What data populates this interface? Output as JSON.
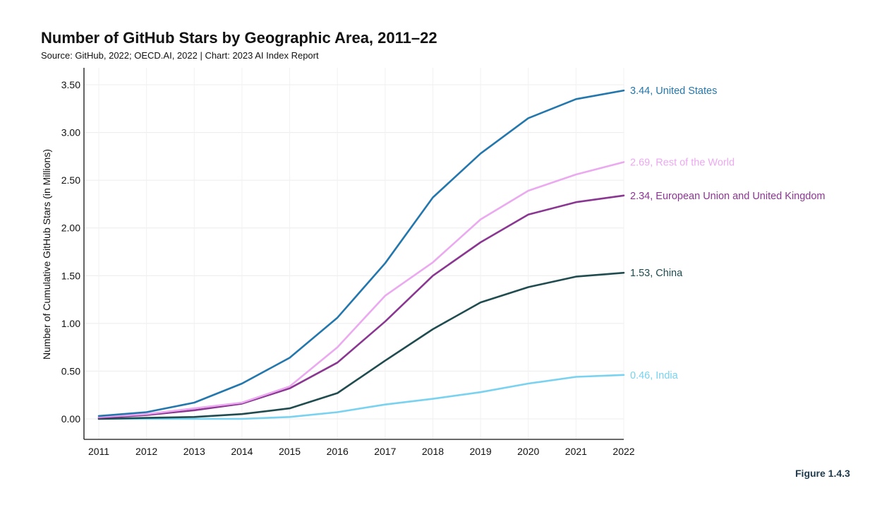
{
  "title": "Number of GitHub Stars by Geographic Area, 2011–22",
  "subtitle": "Source: GitHub, 2022; OECD.AI, 2022 | Chart: 2023 AI Index Report",
  "figure_label": "Figure 1.4.3",
  "chart_data": {
    "type": "line",
    "ylabel": "Number of Cumulative GitHub Stars (in Millions)",
    "xlabel": "",
    "x": [
      2011,
      2012,
      2013,
      2014,
      2015,
      2016,
      2017,
      2018,
      2019,
      2020,
      2021,
      2022
    ],
    "x_tick_labels": [
      "2011",
      "2012",
      "2013",
      "2014",
      "2015",
      "2016",
      "2017",
      "2018",
      "2019",
      "2020",
      "2021",
      "2022"
    ],
    "y_ticks": [
      0,
      0.5,
      1.0,
      1.5,
      2.0,
      2.5,
      3.0,
      3.5
    ],
    "y_tick_labels": [
      "0.00",
      "0.50",
      "1.00",
      "1.50",
      "2.00",
      "2.50",
      "3.00",
      "3.50"
    ],
    "ylim": [
      -0.22,
      3.65
    ],
    "grid": true,
    "series": [
      {
        "name": "United States",
        "color": "#2377ad",
        "end_label": "3.44, United States",
        "values": [
          0.03,
          0.07,
          0.17,
          0.37,
          0.64,
          1.06,
          1.63,
          2.32,
          2.78,
          3.15,
          3.35,
          3.44
        ]
      },
      {
        "name": "Rest of the World",
        "color": "#eba9f0",
        "end_label": "2.69, Rest of the World",
        "values": [
          0.02,
          0.05,
          0.11,
          0.17,
          0.34,
          0.75,
          1.29,
          1.64,
          2.09,
          2.39,
          2.56,
          2.69
        ]
      },
      {
        "name": "European Union and United Kingdom",
        "color": "#8a3791",
        "end_label": "2.34, European Union and United Kingdom",
        "values": [
          0.01,
          0.04,
          0.09,
          0.16,
          0.32,
          0.59,
          1.02,
          1.5,
          1.85,
          2.14,
          2.27,
          2.34
        ]
      },
      {
        "name": "China",
        "color": "#204c50",
        "end_label": "1.53, China",
        "values": [
          0.0,
          0.01,
          0.02,
          0.05,
          0.11,
          0.27,
          0.61,
          0.94,
          1.22,
          1.38,
          1.49,
          1.53
        ]
      },
      {
        "name": "India",
        "color": "#79d2ef",
        "end_label": "0.46, India",
        "values": [
          0.0,
          0.0,
          0.0,
          0.0,
          0.02,
          0.07,
          0.15,
          0.21,
          0.28,
          0.37,
          0.44,
          0.46
        ]
      }
    ]
  }
}
